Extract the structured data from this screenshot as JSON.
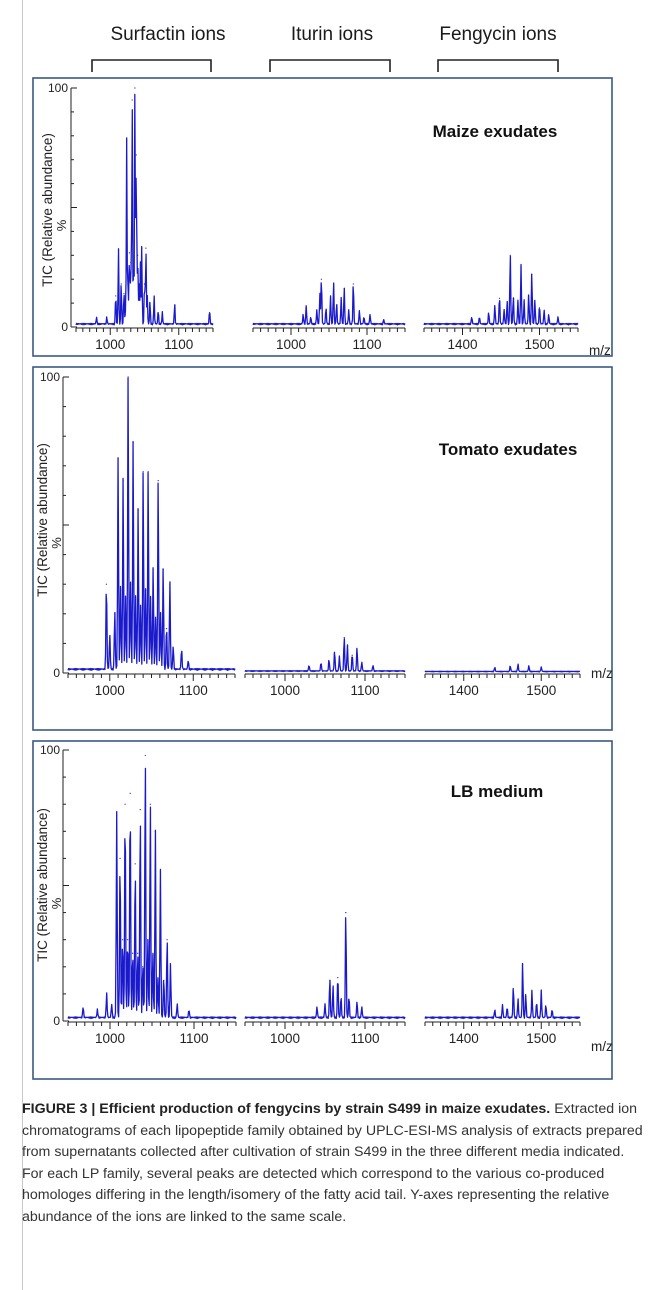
{
  "group_labels": [
    "Surfactin ions",
    "Iturin ions",
    "Fengycin ions"
  ],
  "axis": {
    "ylabel": "TIC (Relative abundance)",
    "percent_label": "%",
    "y_top_label": "100",
    "y_zero_label": "0",
    "x_unit": "m/z"
  },
  "caption": {
    "bold": "FIGURE 3 | Efficient production of fengycins by strain S499 in maize exudates.",
    "text": " Extracted ion chromatograms of each lipopeptide family obtained by UPLC-ESI-MS analysis of extracts prepared from supernatants collected after cultivation of strain S499 in the three different media indicated. For each LP family, several peaks are detected which correspond to the various co-produced homologes differing in the length/isomery of the fatty acid tail. Y-axes representing the relative abundance of the ions are linked to the same scale."
  },
  "colors": {
    "trace": "#1a1acc",
    "frame": "#3a5a80",
    "axis": "#222222"
  },
  "chart_data": [
    {
      "type": "line",
      "title": "Maize exudates",
      "ylabel": "TIC (Relative abundance)",
      "xlabel": "m/z",
      "ylim": [
        0,
        100
      ],
      "segments": [
        {
          "name": "Surfactin ions",
          "xlim": [
            950,
            1150
          ],
          "ticks": [
            1000,
            1100
          ],
          "baseline": 1.5,
          "peaks": [
            [
              980,
              3
            ],
            [
              995,
              3
            ],
            [
              1008,
              13
            ],
            [
              1012,
              32
            ],
            [
              1016,
              18
            ],
            [
              1020,
              14
            ],
            [
              1022,
              5
            ],
            [
              1024,
              78
            ],
            [
              1026,
              18
            ],
            [
              1028,
              31
            ],
            [
              1030,
              27
            ],
            [
              1032,
              95
            ],
            [
              1034,
              20
            ],
            [
              1036,
              100
            ],
            [
              1038,
              72
            ],
            [
              1040,
              30
            ],
            [
              1042,
              18
            ],
            [
              1044,
              26
            ],
            [
              1046,
              33
            ],
            [
              1050,
              18
            ],
            [
              1052,
              33
            ],
            [
              1054,
              12
            ],
            [
              1058,
              10
            ],
            [
              1064,
              12
            ],
            [
              1070,
              6
            ],
            [
              1076,
              5
            ],
            [
              1094,
              9
            ],
            [
              1145,
              6
            ]
          ]
        },
        {
          "name": "Iturin ions",
          "xlim": [
            950,
            1150
          ],
          "ticks": [
            1000,
            1100
          ],
          "baseline": 1.5,
          "peaks": [
            [
              1016,
              4
            ],
            [
              1020,
              8
            ],
            [
              1026,
              3
            ],
            [
              1034,
              6
            ],
            [
              1038,
              13
            ],
            [
              1040,
              20
            ],
            [
              1046,
              7
            ],
            [
              1052,
              12
            ],
            [
              1056,
              18
            ],
            [
              1060,
              9
            ],
            [
              1066,
              11
            ],
            [
              1070,
              16
            ],
            [
              1076,
              6
            ],
            [
              1082,
              18
            ],
            [
              1090,
              6
            ],
            [
              1096,
              3
            ],
            [
              1104,
              4
            ],
            [
              1122,
              2
            ]
          ]
        },
        {
          "name": "Fengycin ions",
          "xlim": [
            1350,
            1550
          ],
          "ticks": [
            1400,
            1500
          ],
          "baseline": 1.5,
          "peaks": [
            [
              1412,
              3
            ],
            [
              1422,
              3
            ],
            [
              1434,
              5
            ],
            [
              1442,
              8
            ],
            [
              1448,
              12
            ],
            [
              1454,
              6
            ],
            [
              1458,
              10
            ],
            [
              1462,
              30
            ],
            [
              1466,
              12
            ],
            [
              1472,
              10
            ],
            [
              1476,
              25
            ],
            [
              1480,
              10
            ],
            [
              1486,
              13
            ],
            [
              1490,
              22
            ],
            [
              1494,
              10
            ],
            [
              1500,
              8
            ],
            [
              1506,
              6
            ],
            [
              1512,
              4
            ],
            [
              1524,
              3
            ]
          ]
        }
      ]
    },
    {
      "type": "line",
      "title": "Tomato exudates",
      "ylabel": "TIC (Relative abundance)",
      "xlabel": "m/z",
      "ylim": [
        0,
        100
      ],
      "segments": [
        {
          "name": "Surfactin ions",
          "xlim": [
            950,
            1150
          ],
          "ticks": [
            1000,
            1100
          ],
          "baseline": 1.5,
          "peaks": [
            [
              996,
              30
            ],
            [
              1000,
              12
            ],
            [
              1006,
              20
            ],
            [
              1010,
              72
            ],
            [
              1013,
              28
            ],
            [
              1016,
              65
            ],
            [
              1019,
              25
            ],
            [
              1022,
              100
            ],
            [
              1025,
              30
            ],
            [
              1028,
              78
            ],
            [
              1031,
              25
            ],
            [
              1034,
              55
            ],
            [
              1037,
              22
            ],
            [
              1040,
              68
            ],
            [
              1043,
              28
            ],
            [
              1046,
              68
            ],
            [
              1049,
              25
            ],
            [
              1052,
              35
            ],
            [
              1055,
              18
            ],
            [
              1058,
              65
            ],
            [
              1061,
              20
            ],
            [
              1064,
              35
            ],
            [
              1068,
              15
            ],
            [
              1072,
              30
            ],
            [
              1076,
              8
            ],
            [
              1086,
              7
            ],
            [
              1094,
              3
            ]
          ]
        },
        {
          "name": "Iturin ions",
          "xlim": [
            950,
            1150
          ],
          "ticks": [
            1000,
            1100
          ],
          "baseline": 0.8,
          "peaks": [
            [
              1030,
              2
            ],
            [
              1045,
              3
            ],
            [
              1055,
              4
            ],
            [
              1062,
              7
            ],
            [
              1068,
              5
            ],
            [
              1074,
              12
            ],
            [
              1078,
              9
            ],
            [
              1084,
              6
            ],
            [
              1090,
              8
            ],
            [
              1096,
              3
            ],
            [
              1110,
              2
            ]
          ]
        },
        {
          "name": "Fengycin ions",
          "xlim": [
            1350,
            1550
          ],
          "ticks": [
            1400,
            1500
          ],
          "baseline": 0.6,
          "peaks": [
            [
              1440,
              1.5
            ],
            [
              1460,
              2
            ],
            [
              1470,
              2.5
            ],
            [
              1484,
              2
            ],
            [
              1500,
              1.5
            ]
          ]
        }
      ]
    },
    {
      "type": "line",
      "title": "LB medium",
      "ylabel": "TIC (Relative abundance)",
      "xlabel": "m/z",
      "ylim": [
        0,
        100
      ],
      "segments": [
        {
          "name": "Surfactin ions",
          "xlim": [
            950,
            1150
          ],
          "ticks": [
            1000,
            1100
          ],
          "baseline": 1.5,
          "peaks": [
            [
              968,
              4
            ],
            [
              985,
              3
            ],
            [
              996,
              9
            ],
            [
              1002,
              5
            ],
            [
              1008,
              76
            ],
            [
              1012,
              60
            ],
            [
              1015,
              30
            ],
            [
              1018,
              80
            ],
            [
              1021,
              30
            ],
            [
              1024,
              84
            ],
            [
              1027,
              25
            ],
            [
              1030,
              58
            ],
            [
              1033,
              25
            ],
            [
              1036,
              78
            ],
            [
              1039,
              20
            ],
            [
              1042,
              98
            ],
            [
              1045,
              30
            ],
            [
              1048,
              80
            ],
            [
              1051,
              24
            ],
            [
              1054,
              70
            ],
            [
              1057,
              15
            ],
            [
              1060,
              55
            ],
            [
              1064,
              15
            ],
            [
              1068,
              30
            ],
            [
              1072,
              20
            ],
            [
              1080,
              5
            ],
            [
              1094,
              3
            ]
          ]
        },
        {
          "name": "Iturin ions",
          "xlim": [
            950,
            1150
          ],
          "ticks": [
            1000,
            1100
          ],
          "baseline": 1.5,
          "peaks": [
            [
              1040,
              4
            ],
            [
              1050,
              5
            ],
            [
              1056,
              15
            ],
            [
              1060,
              12
            ],
            [
              1066,
              16
            ],
            [
              1070,
              8
            ],
            [
              1076,
              40
            ],
            [
              1080,
              8
            ],
            [
              1090,
              6
            ],
            [
              1096,
              4
            ]
          ]
        },
        {
          "name": "Fengycin ions",
          "xlim": [
            1350,
            1550
          ],
          "ticks": [
            1400,
            1500
          ],
          "baseline": 1.5,
          "peaks": [
            [
              1440,
              3
            ],
            [
              1450,
              5
            ],
            [
              1456,
              4
            ],
            [
              1464,
              12
            ],
            [
              1470,
              7
            ],
            [
              1476,
              21
            ],
            [
              1480,
              9
            ],
            [
              1488,
              10
            ],
            [
              1494,
              6
            ],
            [
              1500,
              10
            ],
            [
              1506,
              5
            ],
            [
              1514,
              3
            ]
          ]
        }
      ]
    }
  ]
}
